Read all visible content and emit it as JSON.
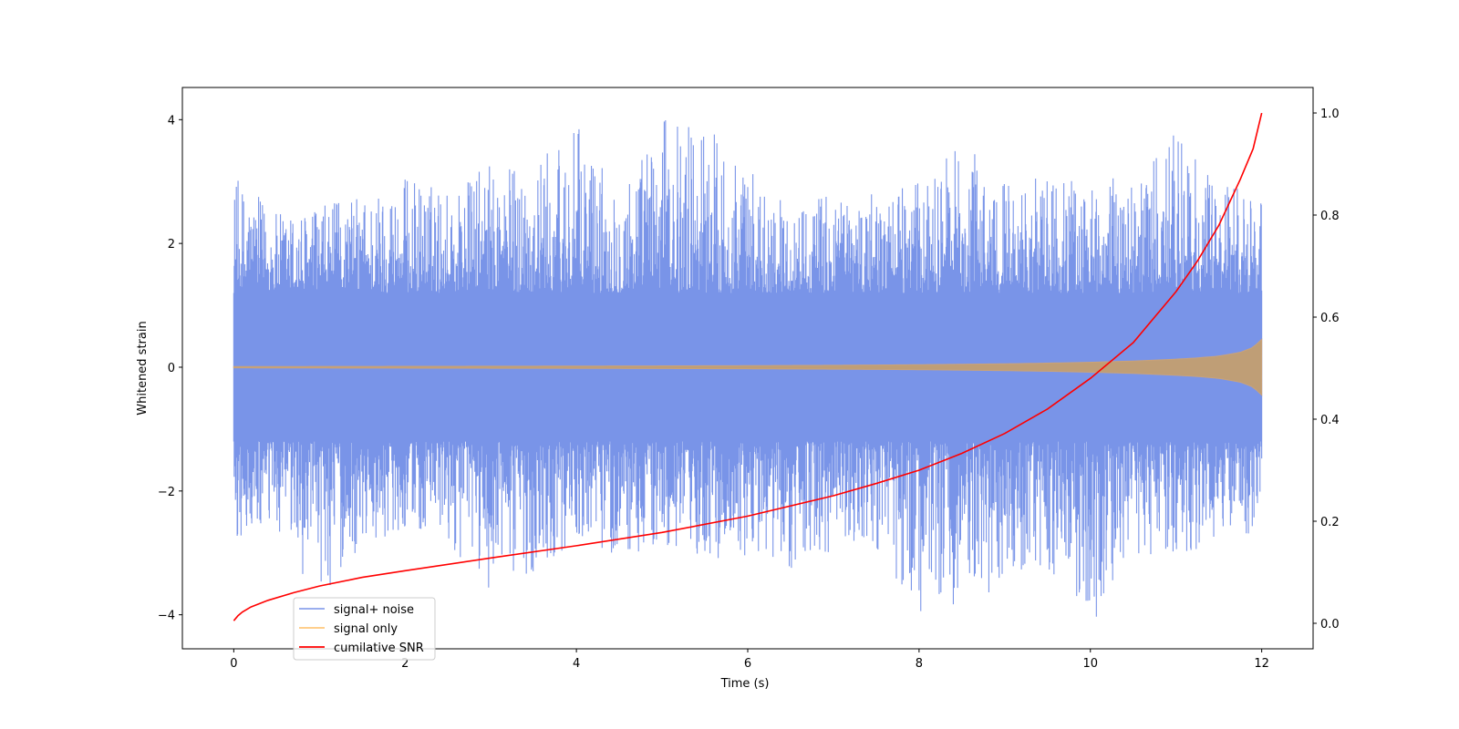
{
  "chart_data": {
    "type": "line",
    "title": "",
    "xlabel": "Time (s)",
    "ylabel": "Whitened strain",
    "y2label": "",
    "xlim": [
      -0.6,
      12.6
    ],
    "ylim": [
      -4.55,
      4.52
    ],
    "y2lim": [
      -0.05,
      1.05
    ],
    "xticks": [
      0,
      2,
      4,
      6,
      8,
      10,
      12
    ],
    "yticks": [
      -4,
      -2,
      0,
      2,
      4
    ],
    "y2ticks": [
      0.0,
      0.2,
      0.4,
      0.6,
      0.8,
      1.0
    ],
    "xtick_labels": [
      "0",
      "2",
      "4",
      "6",
      "8",
      "10",
      "12"
    ],
    "ytick_labels": [
      "−4",
      "−2",
      "0",
      "2",
      "4"
    ],
    "y2tick_labels": [
      "0.0",
      "0.2",
      "0.4",
      "0.6",
      "0.8",
      "1.0"
    ],
    "grid": false,
    "legend_position": "lower-left",
    "series": [
      {
        "name": "signal+ noise",
        "axis": "left",
        "color": "#7994e8",
        "render": "envelope",
        "x": [
          0,
          0.5,
          1,
          1.5,
          2,
          2.5,
          3,
          3.5,
          4,
          4.5,
          5,
          5.5,
          6,
          6.5,
          7,
          7.5,
          8,
          8.5,
          9,
          9.5,
          10,
          10.5,
          11,
          11.5,
          12
        ],
        "upper": [
          3.1,
          2.5,
          2.6,
          2.8,
          3.1,
          2.9,
          3.3,
          3.3,
          3.9,
          3.0,
          4.0,
          4.1,
          3.2,
          2.6,
          2.9,
          2.8,
          3.0,
          3.6,
          3.1,
          3.1,
          3.0,
          3.1,
          3.8,
          2.9,
          3.0
        ],
        "lower": [
          -2.9,
          -2.7,
          -3.8,
          -2.9,
          -2.6,
          -2.9,
          -3.6,
          -3.3,
          -2.8,
          -3.1,
          -3.0,
          -3.1,
          -3.1,
          -3.3,
          -3.0,
          -3.1,
          -4.0,
          -3.9,
          -3.6,
          -3.3,
          -4.2,
          -3.0,
          -3.1,
          -2.8,
          -2.7
        ],
        "band_upper": [
          1.2,
          1.2,
          1.2,
          1.2,
          1.2,
          1.2,
          1.2,
          1.2,
          1.2,
          1.2,
          1.2,
          1.2,
          1.2,
          1.2,
          1.2,
          1.2,
          1.2,
          1.2,
          1.2,
          1.2,
          1.2,
          1.2,
          1.2,
          1.2,
          1.2
        ],
        "band_lower": [
          -1.2,
          -1.2,
          -1.2,
          -1.2,
          -1.2,
          -1.2,
          -1.2,
          -1.2,
          -1.2,
          -1.2,
          -1.2,
          -1.2,
          -1.2,
          -1.2,
          -1.2,
          -1.2,
          -1.2,
          -1.2,
          -1.2,
          -1.2,
          -1.2,
          -1.2,
          -1.2,
          -1.2,
          -1.2
        ]
      },
      {
        "name": "signal only",
        "axis": "left",
        "color": "#ffbf66",
        "render": "envelope",
        "x": [
          0,
          1,
          2,
          3,
          4,
          5,
          6,
          7,
          8,
          9,
          9.5,
          10,
          10.5,
          11,
          11.25,
          11.5,
          11.75,
          11.9,
          12
        ],
        "amplitude": [
          0.01,
          0.012,
          0.014,
          0.016,
          0.018,
          0.021,
          0.025,
          0.031,
          0.04,
          0.055,
          0.066,
          0.08,
          0.1,
          0.13,
          0.15,
          0.18,
          0.24,
          0.32,
          0.45
        ]
      },
      {
        "name": "cumilative SNR",
        "axis": "right",
        "color": "#ff0000",
        "render": "line",
        "x": [
          0,
          0.05,
          0.1,
          0.2,
          0.4,
          0.7,
          1,
          1.5,
          2,
          3,
          4,
          5,
          6,
          7,
          7.5,
          8,
          8.5,
          9,
          9.5,
          10,
          10.5,
          11,
          11.25,
          11.5,
          11.75,
          11.9,
          12
        ],
        "values": [
          0.005,
          0.015,
          0.022,
          0.032,
          0.045,
          0.06,
          0.073,
          0.09,
          0.103,
          0.128,
          0.152,
          0.178,
          0.21,
          0.25,
          0.274,
          0.3,
          0.333,
          0.372,
          0.42,
          0.48,
          0.55,
          0.65,
          0.71,
          0.78,
          0.87,
          0.93,
          1.0
        ]
      }
    ]
  }
}
